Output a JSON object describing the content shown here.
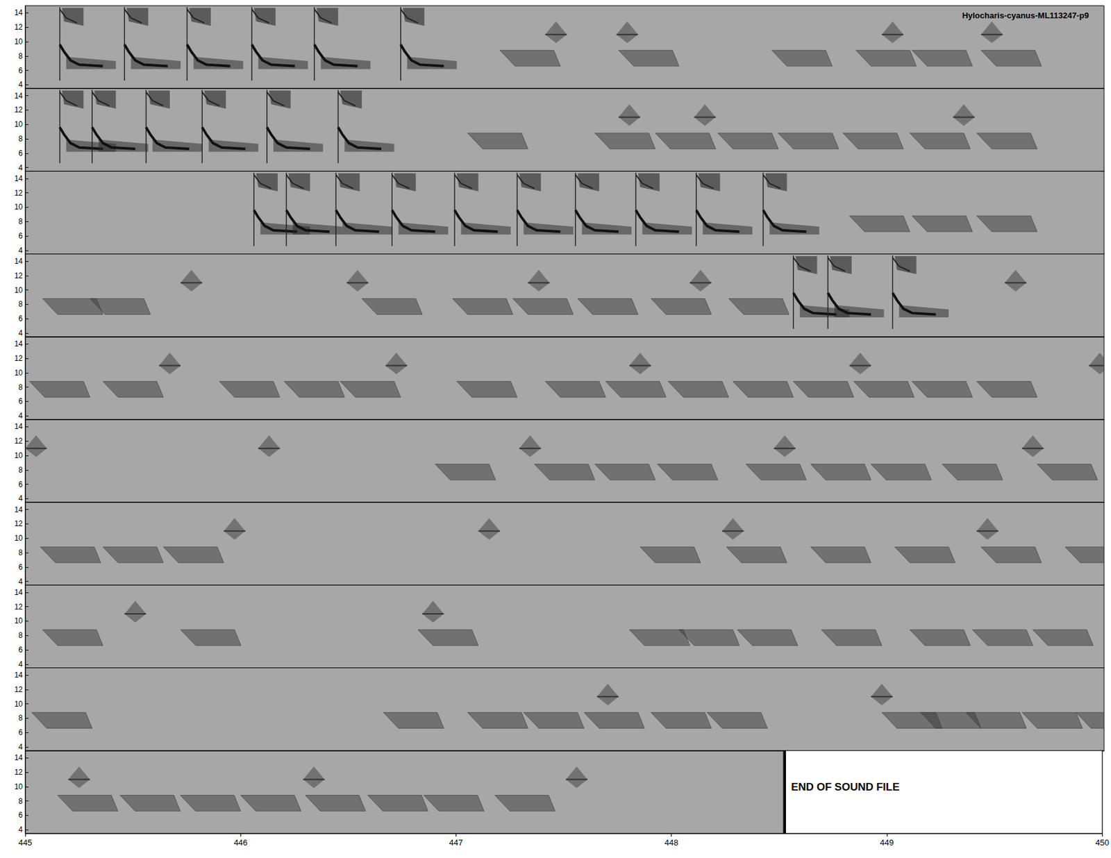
{
  "chart_data": [
    {
      "type": "spectrogram",
      "title": "Hylocharis-cyanus-ML113247-p9",
      "xlim": [
        400,
        405
      ],
      "ylim": [
        3.5,
        15
      ],
      "yticks": [
        4,
        6,
        8,
        10,
        12,
        14
      ],
      "tick_labels": "y",
      "chirp_times": [
        400.16,
        400.46,
        400.75,
        401.05,
        401.34,
        401.74
      ],
      "buzz_times": [
        402.2,
        402.75,
        403.46,
        403.85,
        404.11,
        404.43
      ],
      "click_times": [
        402.41,
        402.74,
        403.97,
        404.43
      ]
    },
    {
      "type": "spectrogram",
      "xlim": [
        405,
        410
      ],
      "ylim": [
        3.5,
        15
      ],
      "yticks": [
        4,
        6,
        8,
        10,
        12,
        14
      ],
      "tick_labels": "y",
      "chirp_times": [
        405.16,
        405.31,
        405.56,
        405.82,
        406.12,
        406.45
      ],
      "buzz_times": [
        407.05,
        407.64,
        407.92,
        408.21,
        408.49,
        408.79,
        409.1,
        409.41
      ],
      "click_times": [
        407.75,
        408.1,
        409.3
      ]
    },
    {
      "type": "spectrogram",
      "xlim": [
        410,
        415
      ],
      "ylim": [
        3.5,
        15
      ],
      "yticks": [
        4,
        6,
        8,
        10,
        12,
        14
      ],
      "tick_labels": "y",
      "chirp_times": [
        411.06,
        411.21,
        411.44,
        411.7,
        411.99,
        412.28,
        412.55,
        412.83,
        413.11,
        413.42
      ],
      "buzz_times": [
        413.82,
        414.11,
        414.41
      ],
      "click_times": []
    },
    {
      "type": "spectrogram",
      "xlim": [
        415,
        420
      ],
      "ylim": [
        3.5,
        15
      ],
      "yticks": [
        4,
        6,
        8,
        10,
        12,
        14
      ],
      "tick_labels": "y",
      "chirp_times": [
        418.56,
        418.72,
        419.02
      ],
      "buzz_times": [
        415.08,
        415.3,
        416.56,
        416.98,
        417.26,
        417.56,
        417.9,
        418.26
      ],
      "click_times": [
        415.72,
        416.49,
        417.33,
        418.08,
        419.54
      ]
    },
    {
      "type": "spectrogram",
      "xlim": [
        420,
        425
      ],
      "ylim": [
        3.5,
        15
      ],
      "yticks": [
        4,
        6,
        8,
        10,
        12,
        14
      ],
      "tick_labels": "y",
      "chirp_times": [],
      "buzz_times": [
        420.02,
        420.36,
        420.9,
        421.2,
        421.46,
        422.0,
        422.41,
        422.69,
        422.98,
        423.28,
        423.56,
        423.84,
        424.11,
        424.41
      ],
      "click_times": [
        420.62,
        421.67,
        422.8,
        423.82,
        424.93
      ]
    },
    {
      "type": "spectrogram",
      "xlim": [
        425,
        430
      ],
      "ylim": [
        3.5,
        15
      ],
      "yticks": [
        4,
        6,
        8,
        10,
        12,
        14
      ],
      "tick_labels": "y",
      "chirp_times": [],
      "buzz_times": [
        426.9,
        427.36,
        427.64,
        427.93,
        428.34,
        428.64,
        428.92,
        429.25,
        429.69
      ],
      "click_times": [
        425.0,
        426.08,
        427.29,
        428.47,
        429.62
      ]
    },
    {
      "type": "spectrogram",
      "xlim": [
        430,
        435
      ],
      "ylim": [
        3.5,
        15
      ],
      "yticks": [
        4,
        6,
        8,
        10,
        12,
        14
      ],
      "tick_labels": "y",
      "chirp_times": [],
      "buzz_times": [
        430.07,
        430.36,
        430.64,
        432.85,
        433.25,
        433.64,
        434.03,
        434.43,
        434.82
      ],
      "click_times": [
        430.92,
        432.1,
        433.23,
        434.41
      ]
    },
    {
      "type": "spectrogram",
      "xlim": [
        435,
        440
      ],
      "ylim": [
        3.5,
        15
      ],
      "yticks": [
        4,
        6,
        8,
        10,
        12,
        14
      ],
      "tick_labels": "y",
      "chirp_times": [],
      "buzz_times": [
        435.08,
        435.72,
        436.82,
        437.8,
        438.03,
        438.3,
        438.69,
        439.1,
        439.39,
        439.67
      ],
      "click_times": [
        435.46,
        436.84
      ]
    },
    {
      "type": "spectrogram",
      "xlim": [
        440,
        445
      ],
      "ylim": [
        3.5,
        15
      ],
      "yticks": [
        4,
        6,
        8,
        10,
        12,
        14
      ],
      "tick_labels": "y",
      "chirp_times": [],
      "buzz_times": [
        440.03,
        441.66,
        442.05,
        442.31,
        442.59,
        442.9,
        443.16,
        443.97,
        444.15,
        444.36,
        444.62,
        444.87
      ],
      "click_times": [
        442.65,
        443.92
      ]
    },
    {
      "type": "spectrogram",
      "xlim": [
        445,
        450
      ],
      "xticks": [
        445,
        446,
        447,
        448,
        449,
        450
      ],
      "ylim": [
        3.5,
        15
      ],
      "yticks": [
        4,
        6,
        8,
        10,
        12,
        14
      ],
      "tick_labels": true,
      "chirp_times": [],
      "buzz_times": [
        445.15,
        445.44,
        445.72,
        446.0,
        446.3,
        446.59,
        446.85,
        447.18
      ],
      "click_times": [
        445.2,
        446.29,
        447.51
      ],
      "end_of_file": {
        "time": 448.52,
        "label": "END OF SOUND FILE"
      }
    }
  ]
}
